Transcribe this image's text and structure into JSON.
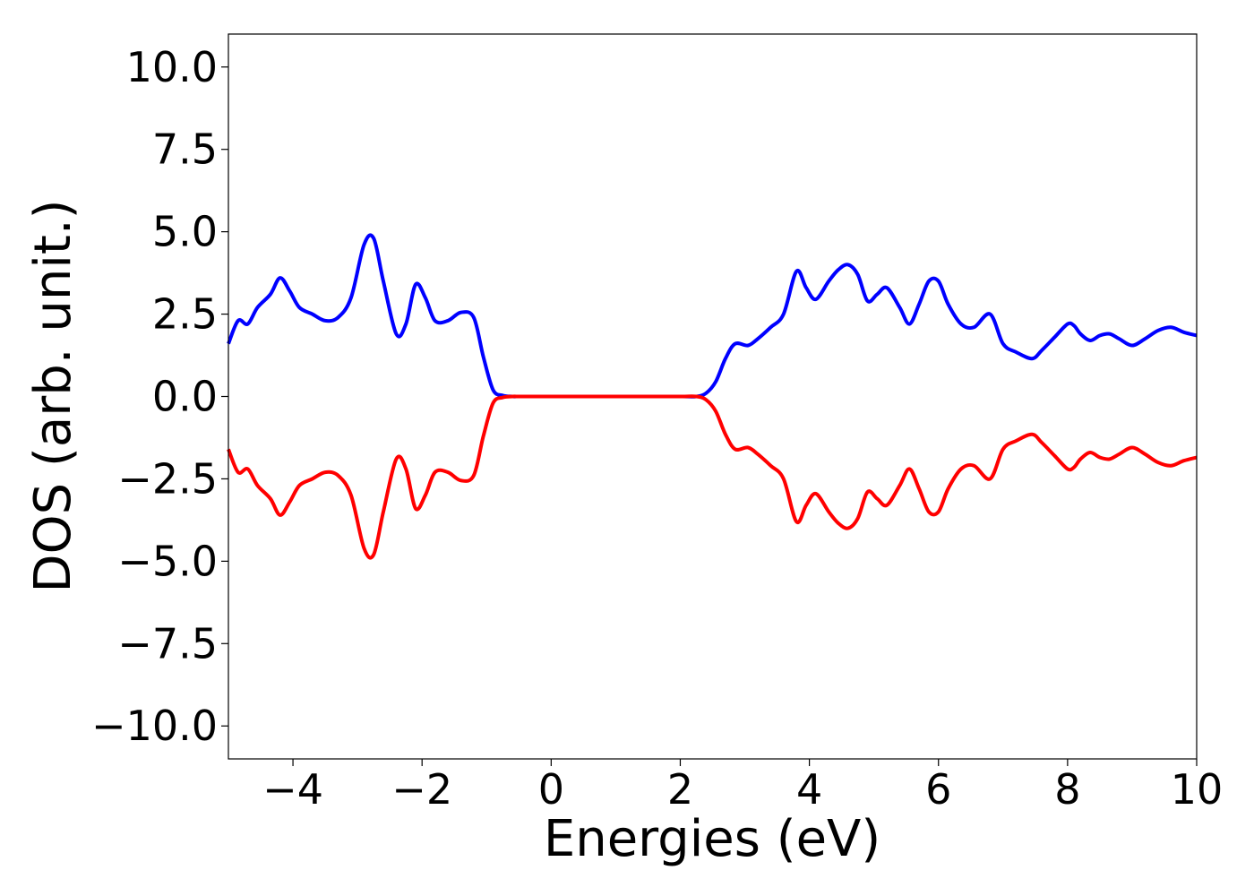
{
  "chart_data": {
    "type": "line",
    "title": "",
    "xlabel": "Energies (eV)",
    "ylabel": "DOS (arb. unit.)",
    "xlim": [
      -5,
      10
    ],
    "ylim": [
      -11,
      11
    ],
    "grid": false,
    "legend": "none",
    "x_ticks": [
      -4,
      -2,
      0,
      2,
      4,
      6,
      8,
      10
    ],
    "x_tick_labels": [
      "−4",
      "−2",
      "0",
      "2",
      "4",
      "6",
      "8",
      "10"
    ],
    "y_ticks": [
      10,
      7.5,
      5,
      2.5,
      0,
      -2.5,
      -5,
      -7.5,
      -10
    ],
    "y_tick_labels": [
      "10.0",
      "7.5",
      "5.0",
      "2.5",
      "0.0",
      "−2.5",
      "−5.0",
      "−7.5",
      "−10.0"
    ],
    "series": [
      {
        "color": "#0000ff",
        "x": [
          -5.0,
          -4.85,
          -4.7,
          -4.55,
          -4.35,
          -4.2,
          -4.05,
          -3.9,
          -3.7,
          -3.5,
          -3.3,
          -3.1,
          -2.9,
          -2.75,
          -2.6,
          -2.4,
          -2.25,
          -2.1,
          -1.95,
          -1.8,
          -1.6,
          -1.4,
          -1.2,
          -1.05,
          -0.9,
          -0.75,
          -0.6,
          -0.5,
          -0.3,
          0.0,
          0.5,
          1.0,
          1.5,
          2.0,
          2.25,
          2.4,
          2.55,
          2.7,
          2.85,
          3.05,
          3.2,
          3.4,
          3.6,
          3.8,
          3.95,
          4.1,
          4.3,
          4.45,
          4.6,
          4.75,
          4.9,
          5.05,
          5.2,
          5.4,
          5.55,
          5.7,
          5.85,
          6.0,
          6.15,
          6.35,
          6.55,
          6.8,
          7.0,
          7.2,
          7.45,
          7.6,
          7.8,
          8.0,
          8.1,
          8.2,
          8.35,
          8.5,
          8.65,
          8.8,
          9.0,
          9.2,
          9.4,
          9.6,
          9.8,
          10.0
        ],
        "y": [
          1.6,
          2.3,
          2.2,
          2.7,
          3.1,
          3.6,
          3.2,
          2.7,
          2.5,
          2.3,
          2.4,
          3.0,
          4.6,
          4.8,
          3.5,
          1.9,
          2.2,
          3.4,
          3.0,
          2.3,
          2.3,
          2.55,
          2.4,
          1.2,
          0.2,
          0.03,
          0.0,
          0.0,
          0.0,
          0.0,
          0.0,
          0.0,
          0.0,
          0.0,
          0.0,
          0.1,
          0.45,
          1.15,
          1.6,
          1.55,
          1.75,
          2.1,
          2.5,
          3.8,
          3.3,
          2.95,
          3.5,
          3.85,
          4.0,
          3.7,
          2.9,
          3.1,
          3.3,
          2.7,
          2.2,
          2.8,
          3.5,
          3.5,
          2.8,
          2.2,
          2.1,
          2.5,
          1.6,
          1.35,
          1.15,
          1.4,
          1.8,
          2.2,
          2.15,
          1.9,
          1.7,
          1.85,
          1.9,
          1.75,
          1.55,
          1.75,
          2.0,
          2.1,
          1.95,
          1.85
        ]
      },
      {
        "color": "#ff0000",
        "x": [
          -5.0,
          -4.85,
          -4.7,
          -4.55,
          -4.35,
          -4.2,
          -4.05,
          -3.9,
          -3.7,
          -3.5,
          -3.3,
          -3.1,
          -2.9,
          -2.75,
          -2.6,
          -2.4,
          -2.25,
          -2.1,
          -1.95,
          -1.8,
          -1.6,
          -1.4,
          -1.2,
          -1.05,
          -0.9,
          -0.75,
          -0.6,
          -0.5,
          -0.3,
          0.0,
          0.5,
          1.0,
          1.5,
          2.0,
          2.25,
          2.4,
          2.55,
          2.7,
          2.85,
          3.05,
          3.2,
          3.4,
          3.6,
          3.8,
          3.95,
          4.1,
          4.3,
          4.45,
          4.6,
          4.75,
          4.9,
          5.05,
          5.2,
          5.4,
          5.55,
          5.7,
          5.85,
          6.0,
          6.15,
          6.35,
          6.55,
          6.8,
          7.0,
          7.2,
          7.45,
          7.6,
          7.8,
          8.0,
          8.1,
          8.2,
          8.35,
          8.5,
          8.65,
          8.8,
          9.0,
          9.2,
          9.4,
          9.6,
          9.8,
          10.0
        ],
        "y": [
          -1.6,
          -2.3,
          -2.2,
          -2.7,
          -3.1,
          -3.6,
          -3.2,
          -2.7,
          -2.5,
          -2.3,
          -2.4,
          -3.0,
          -4.6,
          -4.8,
          -3.5,
          -1.9,
          -2.2,
          -3.4,
          -3.0,
          -2.3,
          -2.3,
          -2.55,
          -2.4,
          -1.2,
          -0.2,
          -0.03,
          0.0,
          0.0,
          0.0,
          0.0,
          0.0,
          0.0,
          0.0,
          0.0,
          0.0,
          -0.1,
          -0.45,
          -1.15,
          -1.6,
          -1.55,
          -1.75,
          -2.1,
          -2.5,
          -3.8,
          -3.3,
          -2.95,
          -3.5,
          -3.85,
          -4.0,
          -3.7,
          -2.9,
          -3.1,
          -3.3,
          -2.7,
          -2.2,
          -2.8,
          -3.5,
          -3.5,
          -2.8,
          -2.2,
          -2.1,
          -2.5,
          -1.6,
          -1.35,
          -1.15,
          -1.4,
          -1.8,
          -2.2,
          -2.15,
          -1.9,
          -1.7,
          -1.85,
          -1.9,
          -1.75,
          -1.55,
          -1.75,
          -2.0,
          -2.1,
          -1.95,
          -1.85
        ]
      }
    ]
  }
}
